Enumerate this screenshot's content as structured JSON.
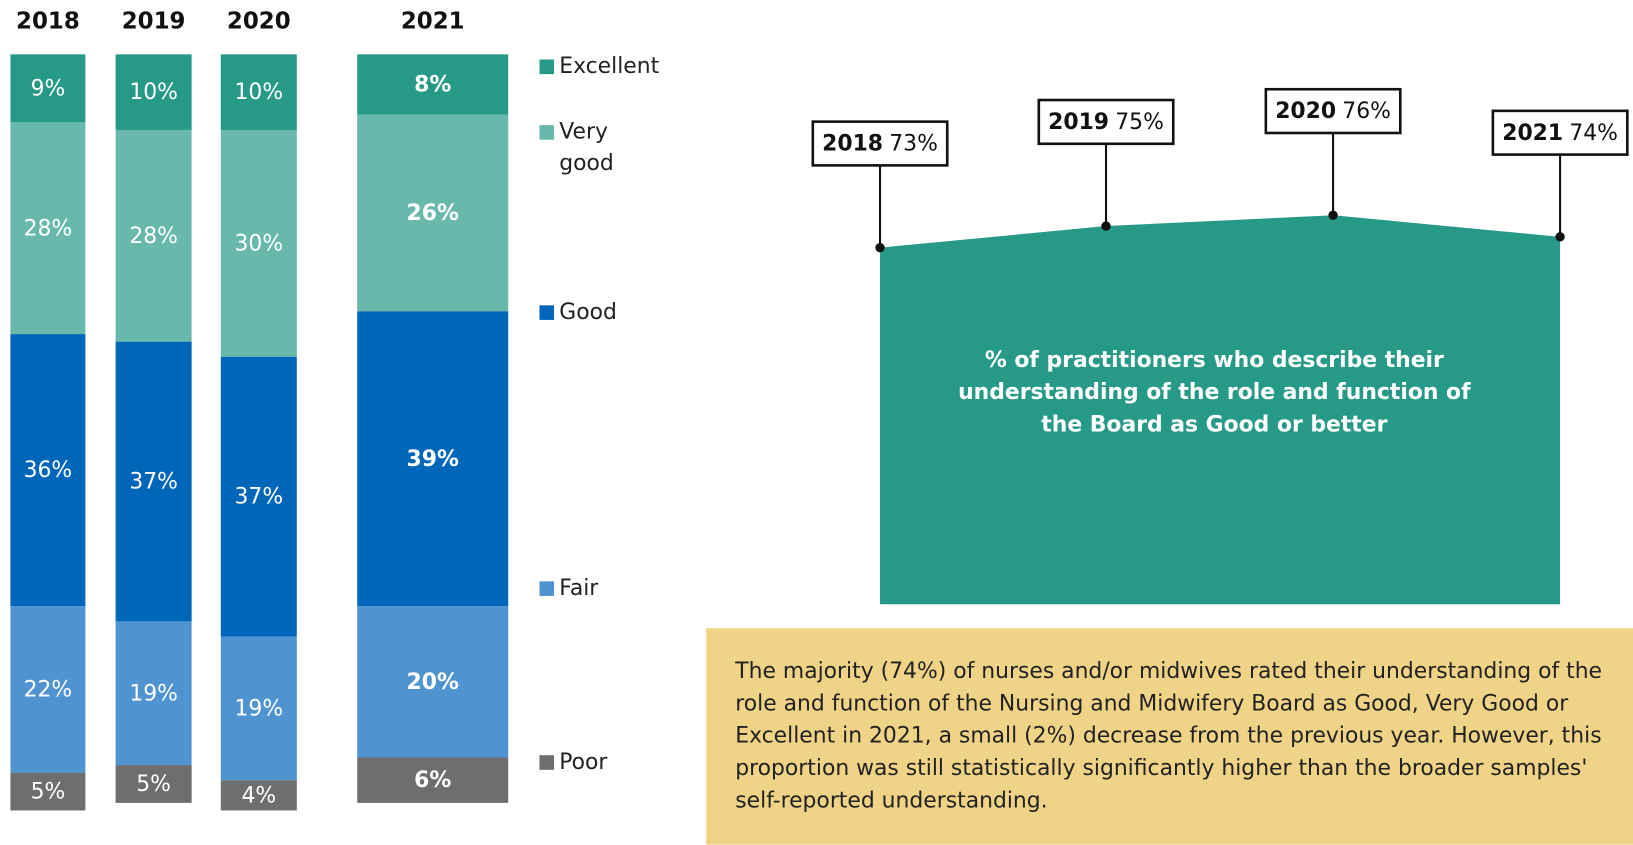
{
  "chart_data": [
    {
      "type": "stacked_bar",
      "categories": [
        "2018",
        "2019",
        "2020",
        "2021"
      ],
      "ylim": [
        0,
        100
      ],
      "series": [
        {
          "name": "Excellent",
          "color": "#279a87",
          "values": [
            9,
            10,
            10,
            8
          ],
          "value_labels": [
            "9%",
            "10%",
            "10%",
            "8%"
          ]
        },
        {
          "name": "Very good",
          "color": "#68b9ab",
          "values": [
            28,
            28,
            30,
            26
          ],
          "value_labels": [
            "28%",
            "28%",
            "30%",
            "26%"
          ]
        },
        {
          "name": "Good",
          "color": "#0066b9",
          "values": [
            36,
            37,
            37,
            39
          ],
          "value_labels": [
            "36%",
            "37%",
            "37%",
            "39%"
          ]
        },
        {
          "name": "Fair",
          "color": "#4f94d0",
          "values": [
            22,
            19,
            19,
            20
          ],
          "value_labels": [
            "22%",
            "19%",
            "19%",
            "20%"
          ]
        },
        {
          "name": "Poor",
          "color": "#6d6e70",
          "values": [
            5,
            5,
            4,
            6
          ],
          "value_labels": [
            "5%",
            "5%",
            "4%",
            "6%"
          ]
        }
      ]
    },
    {
      "type": "area",
      "categories": [
        "2018",
        "2019",
        "2020",
        "2021"
      ],
      "values": [
        73,
        75,
        76,
        74
      ],
      "value_labels": [
        "73%",
        "75%",
        "76%",
        "74%"
      ],
      "color": "#279a87",
      "ylim": [
        40,
        80
      ],
      "annotation": "% of practitioners who describe their understanding of the role and function of the Board as Good or better"
    }
  ],
  "note": "The majority (74%) of nurses and/or midwives rated their understanding of the role and function of the Nursing and Midwifery Board as Good, Very Good or Excellent in 2021, a small (2%) decrease from the previous year. However, this proportion was still statistically significantly higher than the broader samples' self-reported understanding."
}
